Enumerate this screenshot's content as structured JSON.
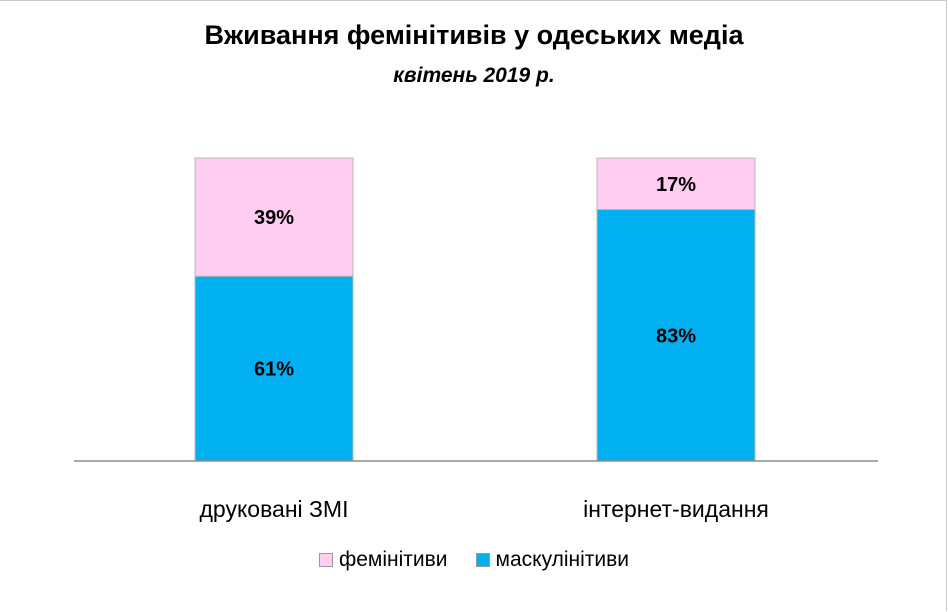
{
  "chart_data": {
    "type": "bar",
    "stacked": true,
    "percent_stacked": true,
    "title": "Вживання фемінітивів у одеських медіа",
    "subtitle": "квітень 2019 р.",
    "categories": [
      "друковані ЗМІ",
      "інтернет-видання"
    ],
    "series": [
      {
        "name": "маскулінітиви",
        "values": [
          61,
          83
        ],
        "labels": [
          "61%",
          "83%"
        ],
        "color": "#00b0f0"
      },
      {
        "name": "фемінітиви",
        "values": [
          39,
          17
        ],
        "labels": [
          "39%",
          "17%"
        ],
        "color": "#ffccf2"
      }
    ],
    "legend_order": [
      "фемінітиви",
      "маскулінітиви"
    ],
    "ylim": [
      0,
      100
    ],
    "grid": false,
    "legend_position": "bottom"
  }
}
